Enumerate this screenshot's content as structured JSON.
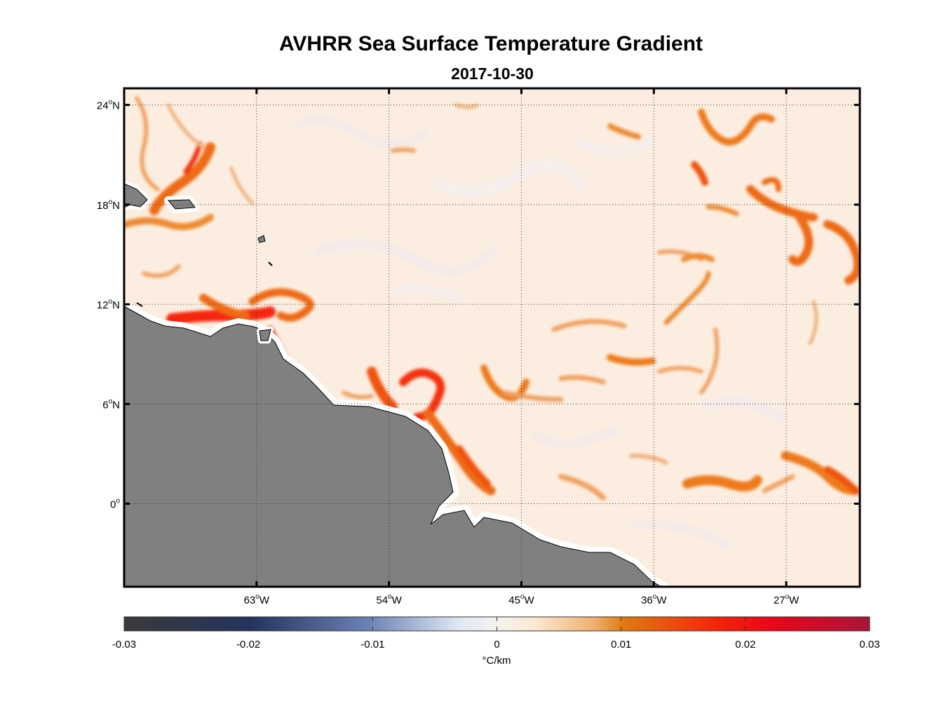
{
  "title": "AVHRR Sea Surface Temperature Gradient",
  "subtitle": "2017-10-30",
  "map": {
    "lon_range": [
      -72,
      -22
    ],
    "lat_range": [
      -5,
      25
    ],
    "lon_ticks": [
      {
        "value": -63,
        "label": "63",
        "hemi": "W"
      },
      {
        "value": -54,
        "label": "54",
        "hemi": "W"
      },
      {
        "value": -45,
        "label": "45",
        "hemi": "W"
      },
      {
        "value": -36,
        "label": "36",
        "hemi": "W"
      },
      {
        "value": -27,
        "label": "27",
        "hemi": "W"
      }
    ],
    "lat_ticks": [
      {
        "value": 24,
        "label": "24",
        "hemi": "N"
      },
      {
        "value": 18,
        "label": "18",
        "hemi": "N"
      },
      {
        "value": 12,
        "label": "12",
        "hemi": "N"
      },
      {
        "value": 6,
        "label": "6",
        "hemi": "N"
      },
      {
        "value": 0,
        "label": "0",
        "hemi": ""
      }
    ],
    "degree_symbol": "o",
    "grid": "dotted",
    "land_color": "#808080",
    "ocean_base_color": "#fbeee0"
  },
  "colorbar": {
    "ticks": [
      "-0.03",
      "-0.02",
      "-0.01",
      "0",
      "0.01",
      "0.02",
      "0.03"
    ],
    "unit": "°C/km",
    "colors": [
      "#3a3a3a",
      "#23345e",
      "#6d83b6",
      "#f4f2ee",
      "#fbe7cc",
      "#e07a10",
      "#f4220a",
      "#e8061a",
      "#a8163a"
    ]
  }
}
